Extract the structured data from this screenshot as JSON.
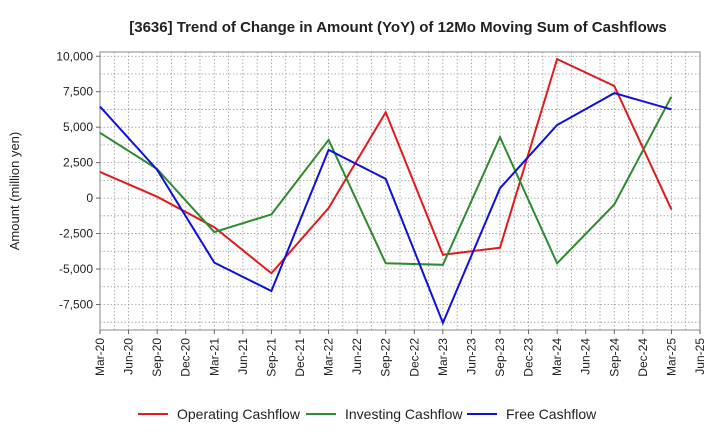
{
  "chart_data": {
    "type": "line",
    "title": "[3636]  Trend of Change in Amount (YoY) of 12Mo Moving Sum of Cashflows",
    "xlabel": "",
    "ylabel": "Amount (million yen)",
    "ylim": [
      -9300,
      10300
    ],
    "yticks": [
      10000,
      7500,
      5000,
      2500,
      0,
      -2500,
      -5000,
      -7500
    ],
    "ytick_labels": [
      "10,000",
      "7,500",
      "5,000",
      "2,500",
      "0",
      "-2,500",
      "-5,000",
      "-7,500"
    ],
    "categories": [
      "Mar-20",
      "Jun-20",
      "Sep-20",
      "Dec-20",
      "Mar-21",
      "Jun-21",
      "Sep-21",
      "Dec-21",
      "Mar-22",
      "Jun-22",
      "Sep-22",
      "Dec-22",
      "Mar-23",
      "Jun-23",
      "Sep-23",
      "Dec-23",
      "Mar-24",
      "Jun-24",
      "Sep-24",
      "Dec-24",
      "Mar-25",
      "Jun-25"
    ],
    "grid": true,
    "legend_position": "bottom",
    "series": [
      {
        "name": "Operating Cashflow",
        "color": "#e31a1c",
        "points": [
          {
            "x": "Mar-20",
            "y": 1850
          },
          {
            "x": "Sep-20",
            "y": 100
          },
          {
            "x": "Mar-21",
            "y": -2050
          },
          {
            "x": "Sep-21",
            "y": -5300
          },
          {
            "x": "Mar-22",
            "y": -700
          },
          {
            "x": "Sep-22",
            "y": 6050
          },
          {
            "x": "Mar-23",
            "y": -4000
          },
          {
            "x": "Sep-23",
            "y": -3500
          },
          {
            "x": "Mar-24",
            "y": 9800
          },
          {
            "x": "Sep-24",
            "y": 7900
          },
          {
            "x": "Mar-25",
            "y": -800
          }
        ]
      },
      {
        "name": "Investing Cashflow",
        "color": "#2e8b2e",
        "points": [
          {
            "x": "Mar-20",
            "y": 4600
          },
          {
            "x": "Sep-20",
            "y": 2050
          },
          {
            "x": "Mar-21",
            "y": -2400
          },
          {
            "x": "Sep-21",
            "y": -1150
          },
          {
            "x": "Mar-22",
            "y": 4100
          },
          {
            "x": "Sep-22",
            "y": -4600
          },
          {
            "x": "Mar-23",
            "y": -4700
          },
          {
            "x": "Sep-23",
            "y": 4300
          },
          {
            "x": "Mar-24",
            "y": -4600
          },
          {
            "x": "Sep-24",
            "y": -450
          },
          {
            "x": "Mar-25",
            "y": 7150
          }
        ]
      },
      {
        "name": "Free Cashflow",
        "color": "#1010dd",
        "points": [
          {
            "x": "Mar-20",
            "y": 6450
          },
          {
            "x": "Sep-20",
            "y": 2000
          },
          {
            "x": "Mar-21",
            "y": -4550
          },
          {
            "x": "Sep-21",
            "y": -6550
          },
          {
            "x": "Mar-22",
            "y": 3400
          },
          {
            "x": "Sep-22",
            "y": 1350
          },
          {
            "x": "Mar-23",
            "y": -8800
          },
          {
            "x": "Sep-23",
            "y": 700
          },
          {
            "x": "Mar-24",
            "y": 5150
          },
          {
            "x": "Sep-24",
            "y": 7400
          },
          {
            "x": "Mar-25",
            "y": 6250
          }
        ]
      }
    ]
  }
}
